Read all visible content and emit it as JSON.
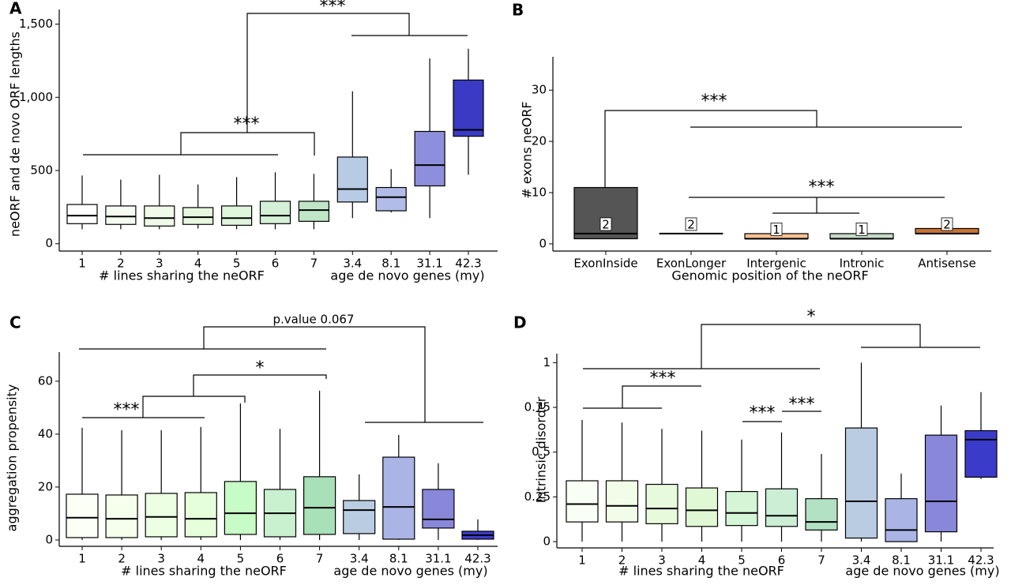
{
  "chart_data": [
    {
      "type": "box",
      "panel_label": "A",
      "ylabel": "neORF and de novo ORF lengths",
      "group_labels": [
        "# lines sharing the neORF",
        "age de novo genes (my)"
      ],
      "categories": [
        "1",
        "2",
        "3",
        "4",
        "5",
        "6",
        "7",
        "3.4",
        "8.1",
        "31.1",
        "42.3"
      ],
      "colors": [
        "#ffffff",
        "#f7fcf3",
        "#f0faea",
        "#e6f7de",
        "#dff5dc",
        "#d4f0d6",
        "#bfe6c6",
        "#b8cbe4",
        "#b1bde8",
        "#8e8fdc",
        "#3a3ac4"
      ],
      "boxes": [
        {
          "low": 99,
          "q1": 137,
          "median": 192,
          "q3": 268,
          "high": 466
        },
        {
          "low": 99,
          "q1": 132,
          "median": 186,
          "q3": 258,
          "high": 438
        },
        {
          "low": 99,
          "q1": 121,
          "median": 175,
          "q3": 258,
          "high": 471
        },
        {
          "low": 104,
          "q1": 132,
          "median": 181,
          "q3": 247,
          "high": 405
        },
        {
          "low": 99,
          "q1": 126,
          "median": 175,
          "q3": 258,
          "high": 455
        },
        {
          "low": 99,
          "q1": 137,
          "median": 192,
          "q3": 290,
          "high": 488
        },
        {
          "low": 99,
          "q1": 153,
          "median": 230,
          "q3": 290,
          "high": 477
        },
        {
          "low": 175,
          "q1": 285,
          "median": 373,
          "q3": 592,
          "high": 1041
        },
        {
          "low": 214,
          "q1": 225,
          "median": 318,
          "q3": 384,
          "high": 510
        },
        {
          "low": 175,
          "q1": 395,
          "median": 537,
          "q3": 767,
          "high": 1266
        },
        {
          "low": 471,
          "q1": 734,
          "median": 778,
          "q3": 1118,
          "high": 1332
        }
      ],
      "ylim": [
        -50,
        1600
      ],
      "yticks": [
        0,
        500,
        {
          "value": 1000,
          "label": "1,000"
        },
        {
          "value": 1500,
          "label": "1,500"
        }
      ],
      "annotations": [
        "***",
        "***"
      ]
    },
    {
      "type": "box",
      "panel_label": "B",
      "ylabel": "# exons neORF",
      "xlabel": "Genomic position of the neORF",
      "categories": [
        "ExonInside",
        "ExonLonger",
        "Intergenic",
        "Intronic",
        "Antisense"
      ],
      "colors": [
        "#555555",
        "#555555",
        "#f6c193",
        "#c7dac9",
        "#c87431"
      ],
      "boxes": [
        {
          "low": 1,
          "q1": 1,
          "median": 2,
          "q3": 11,
          "high": 11
        },
        {
          "low": 2,
          "q1": 2,
          "median": 2,
          "q3": 2,
          "high": 2
        },
        {
          "low": 1,
          "q1": 1,
          "median": 1,
          "q3": 2,
          "high": 3
        },
        {
          "low": 1,
          "q1": 1,
          "median": 1,
          "q3": 2,
          "high": 3
        },
        {
          "low": 2,
          "q1": 2,
          "median": 2,
          "q3": 3,
          "high": 4
        }
      ],
      "ylim": [
        -1.4,
        36.5
      ],
      "yticks": [
        0,
        10,
        20,
        30
      ],
      "median_labels": true,
      "annotations": [
        "***",
        "***"
      ]
    },
    {
      "type": "box",
      "panel_label": "C",
      "ylabel": "aggregation propensity",
      "group_labels": [
        "# lines sharing the neORF",
        "age de novo genes (my)"
      ],
      "categories": [
        "1",
        "2",
        "3",
        "4",
        "5",
        "6",
        "7",
        "3.4",
        "8.1",
        "31.1",
        "42.3"
      ],
      "colors": [
        "#fbfff5",
        "#f5ffec",
        "#ecffe2",
        "#e4ffd9",
        "#c8fcc6",
        "#c9f1cf",
        "#a8e0b8",
        "#b9cce2",
        "#aab5e6",
        "#8887d9",
        "#3c3cca"
      ],
      "boxes": [
        {
          "low": 0,
          "q1": 0.9,
          "median": 8.4,
          "q3": 17.3,
          "high": 42.4
        },
        {
          "low": 0,
          "q1": 0.9,
          "median": 8,
          "q3": 17,
          "high": 41.5
        },
        {
          "low": 0,
          "q1": 1.2,
          "median": 8.7,
          "q3": 17.6,
          "high": 41.5
        },
        {
          "low": 0,
          "q1": 1.2,
          "median": 8,
          "q3": 17.9,
          "high": 42.7
        },
        {
          "low": 0,
          "q1": 2.1,
          "median": 10.1,
          "q3": 22.1,
          "high": 51.6
        },
        {
          "low": 0,
          "q1": 1.2,
          "median": 10.1,
          "q3": 19.1,
          "high": 42
        },
        {
          "low": 0,
          "q1": 2.1,
          "median": 12.2,
          "q3": 23.9,
          "high": 56.4
        },
        {
          "low": 0,
          "q1": 2.4,
          "median": 11.3,
          "q3": 14.9,
          "high": 24.8
        },
        {
          "low": 0,
          "q1": 0.3,
          "median": 12.5,
          "q3": 31.3,
          "high": 39.7
        },
        {
          "low": 0,
          "q1": 4.5,
          "median": 7.8,
          "q3": 19.1,
          "high": 29
        },
        {
          "low": 0,
          "q1": 0.3,
          "median": 1.8,
          "q3": 3.3,
          "high": 7.8
        }
      ],
      "ylim": [
        -2.4,
        71
      ],
      "yticks": [
        0,
        20,
        40,
        60
      ],
      "annotations": [
        "p.value 0.067",
        "***",
        "*"
      ]
    },
    {
      "type": "box",
      "panel_label": "D",
      "ylabel": "Intrinsic disorder",
      "group_labels": [
        "# lines sharing the neORF",
        "age de novo genes (my)"
      ],
      "categories": [
        "1",
        "2",
        "3",
        "4",
        "5",
        "6",
        "7",
        "3.4",
        "8.1",
        "31.1",
        "42.3"
      ],
      "colors": [
        "#fafff5",
        "#f2fde9",
        "#e8fadc",
        "#e0f8d4",
        "#d4f5d6",
        "#cbeed5",
        "#b2e1c3",
        "#b9cce2",
        "#aab5e6",
        "#8887d9",
        "#3b3bc9"
      ],
      "boxes": [
        {
          "low": 0,
          "q1": 0.11,
          "median": 0.21,
          "q3": 0.34,
          "high": 0.68
        },
        {
          "low": 0,
          "q1": 0.11,
          "median": 0.2,
          "q3": 0.34,
          "high": 0.665
        },
        {
          "low": 0,
          "q1": 0.1,
          "median": 0.185,
          "q3": 0.32,
          "high": 0.63
        },
        {
          "low": 0,
          "q1": 0.085,
          "median": 0.175,
          "q3": 0.3,
          "high": 0.62
        },
        {
          "low": 0,
          "q1": 0.09,
          "median": 0.16,
          "q3": 0.28,
          "high": 0.57
        },
        {
          "low": 0,
          "q1": 0.085,
          "median": 0.145,
          "q3": 0.295,
          "high": 0.61
        },
        {
          "low": 0,
          "q1": 0.065,
          "median": 0.11,
          "q3": 0.24,
          "high": 0.49
        },
        {
          "low": 0,
          "q1": 0.02,
          "median": 0.225,
          "q3": 0.635,
          "high": 1
        },
        {
          "low": 0,
          "q1": 0,
          "median": 0.065,
          "q3": 0.24,
          "high": 0.38
        },
        {
          "low": 0,
          "q1": 0.055,
          "median": 0.225,
          "q3": 0.595,
          "high": 0.76
        },
        {
          "low": 0.35,
          "q1": 0.36,
          "median": 0.57,
          "q3": 0.62,
          "high": 0.835
        }
      ],
      "ylim": [
        -0.035,
        1.05
      ],
      "yticks": [
        0,
        0.25,
        0.5,
        0.75,
        1
      ],
      "annotations": [
        "*",
        "***",
        "***",
        "***"
      ]
    }
  ]
}
